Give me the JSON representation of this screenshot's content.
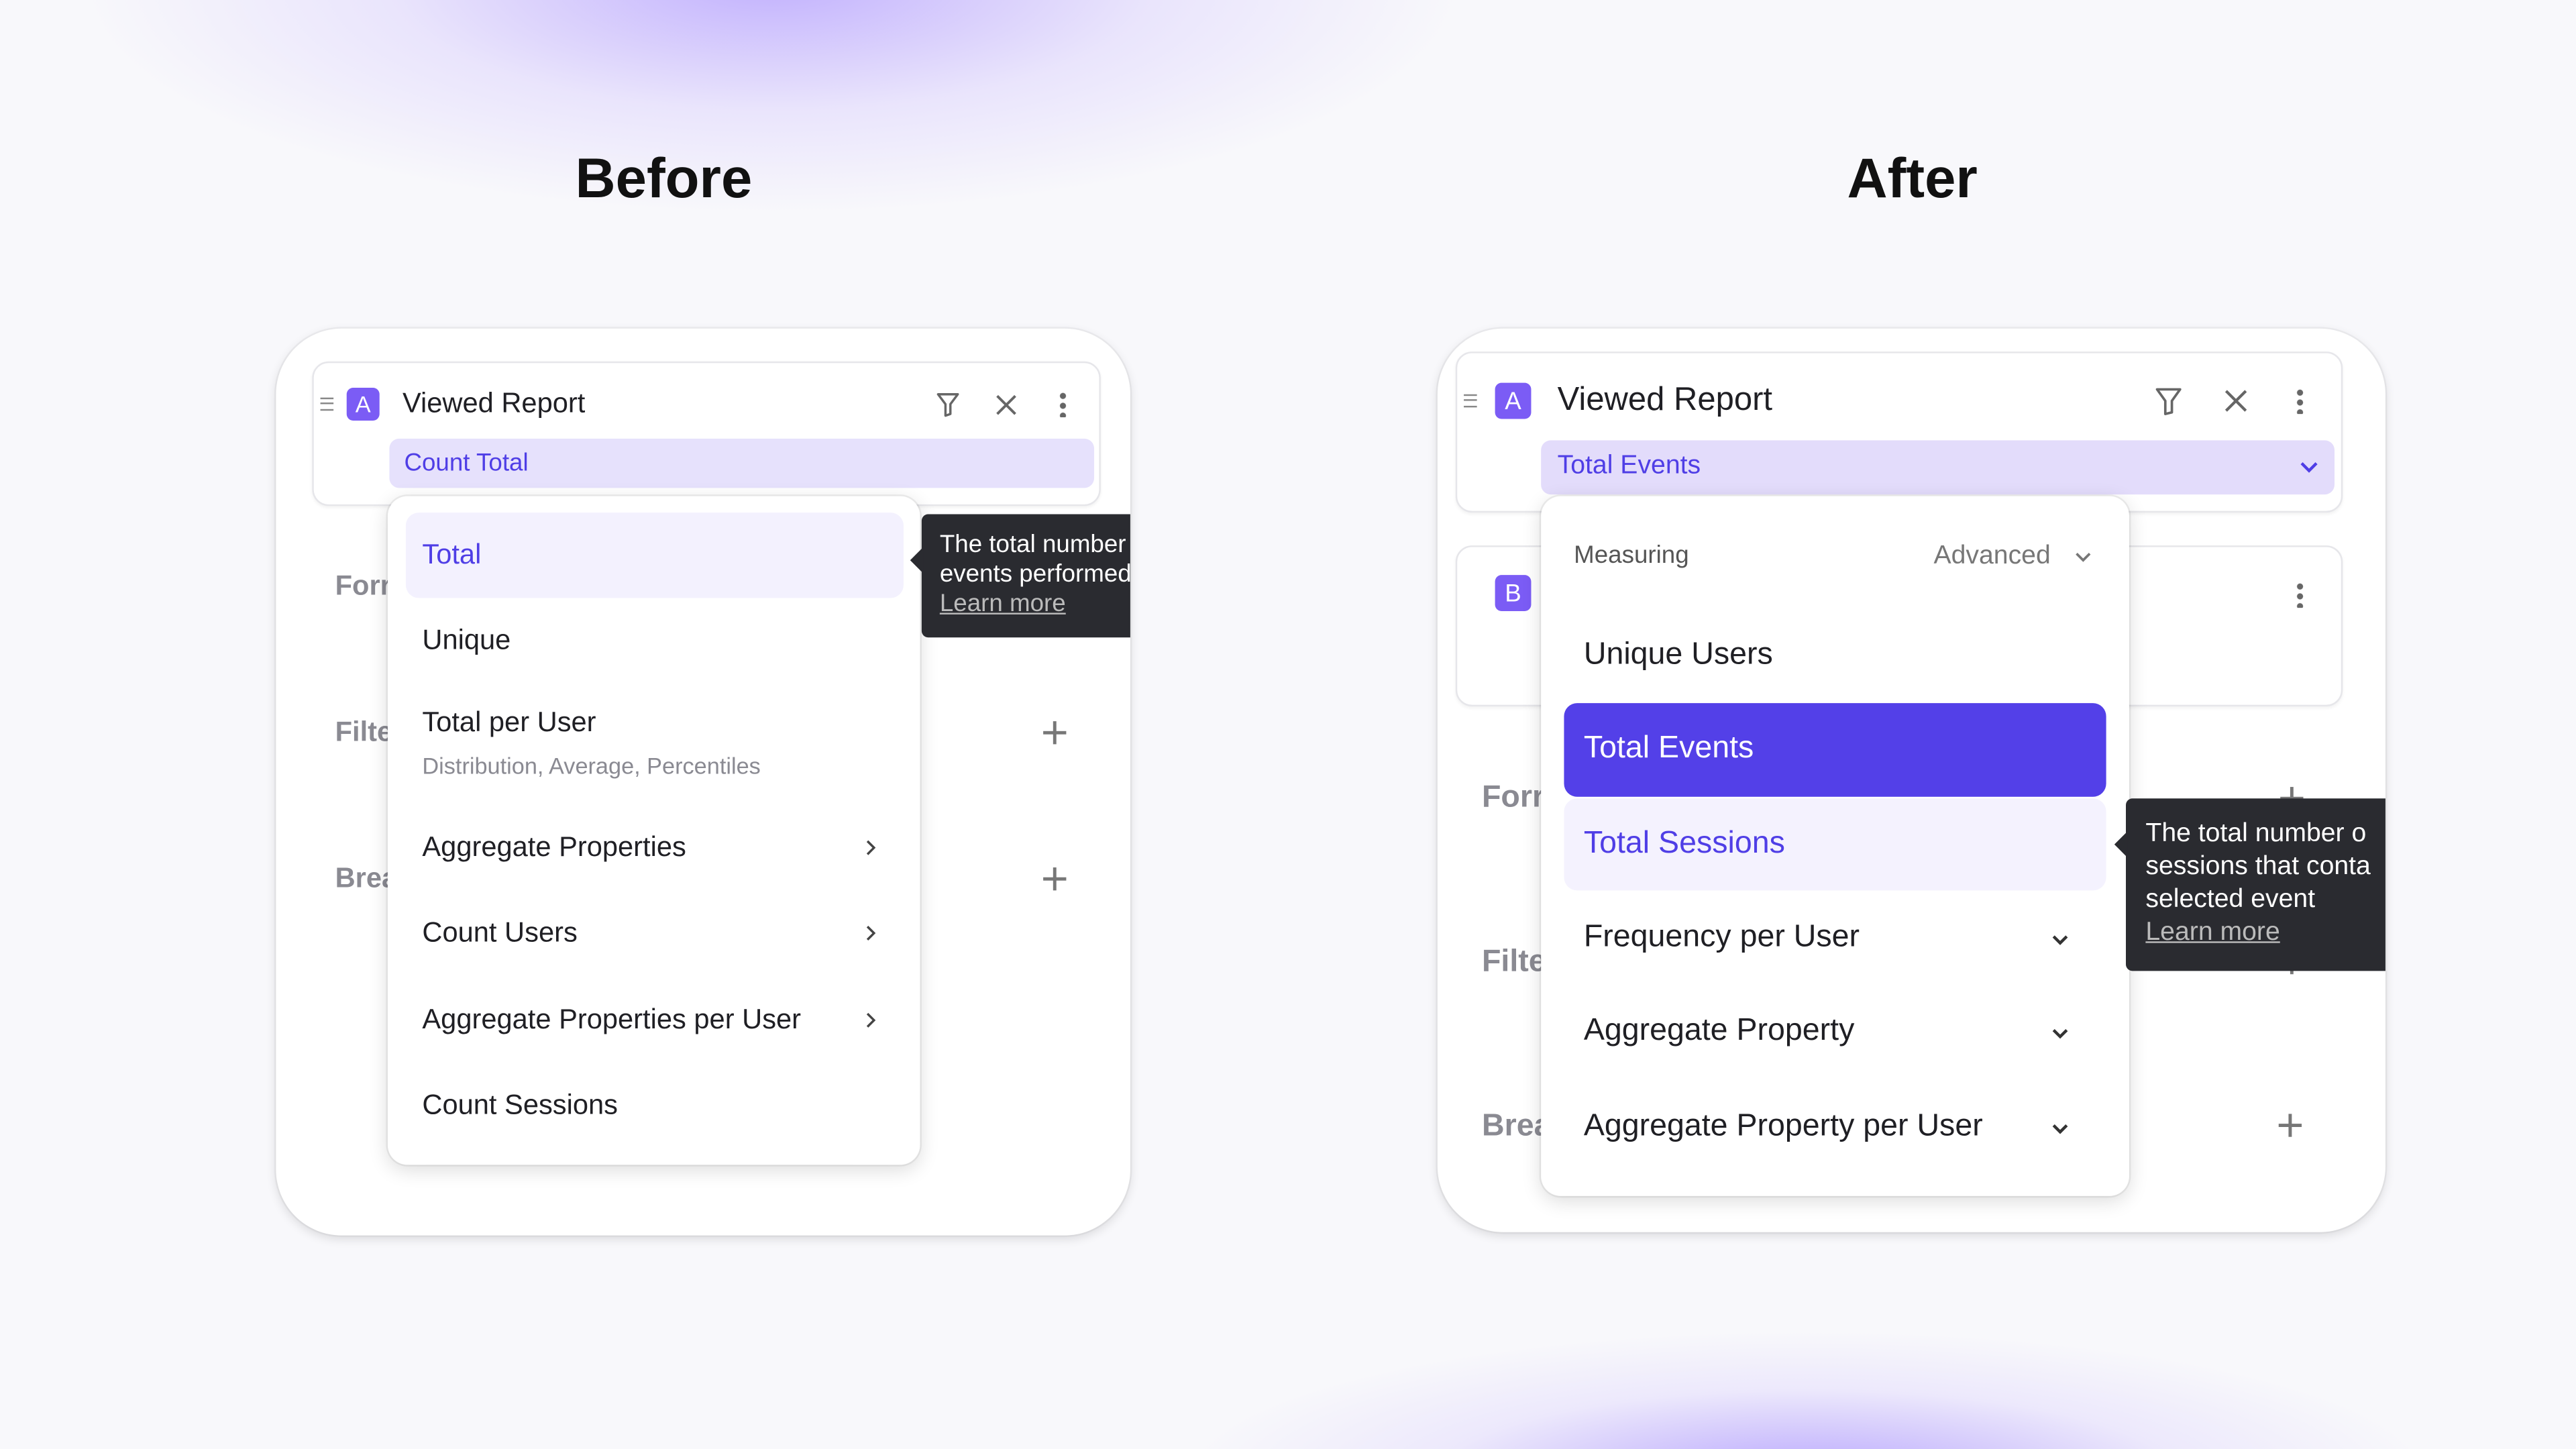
{
  "before": {
    "heading": "Before",
    "event_card": {
      "badge": "A",
      "event_name": "Viewed Report",
      "measure": "Count Total"
    },
    "side_labels": [
      "Forr",
      "Filte",
      "Brea"
    ],
    "menu": {
      "items": [
        {
          "label": "Total",
          "state": "hovered"
        },
        {
          "label": "Unique"
        },
        {
          "label": "Total per User",
          "sublabel": "Distribution, Average, Percentiles"
        },
        {
          "label": "Aggregate Properties",
          "has_submenu": true
        },
        {
          "label": "Count Users",
          "has_submenu": true
        },
        {
          "label": "Aggregate Properties per User",
          "has_submenu": true
        },
        {
          "label": "Count Sessions"
        }
      ]
    },
    "tooltip": {
      "lines": [
        "The total number",
        "events performed"
      ],
      "link": "Learn more"
    }
  },
  "after": {
    "heading": "After",
    "event_card": {
      "badge": "A",
      "event_name": "Viewed Report",
      "measure": "Total Events"
    },
    "second_card": {
      "badge": "B"
    },
    "side_labels": [
      "Forr",
      "Filte",
      "Brea"
    ],
    "menu": {
      "header": "Measuring",
      "advanced": "Advanced",
      "items": [
        {
          "label": "Unique Users"
        },
        {
          "label": "Total Events",
          "state": "selected"
        },
        {
          "label": "Total Sessions",
          "state": "hovered"
        },
        {
          "label": "Frequency per User",
          "expandable": true
        },
        {
          "label": "Aggregate Property",
          "expandable": true
        },
        {
          "label": "Aggregate Property per User",
          "expandable": true
        }
      ]
    },
    "tooltip": {
      "lines": [
        "The total number o",
        "sessions that conta",
        "selected event"
      ],
      "link": "Learn more"
    }
  },
  "colors": {
    "accent": "#5340e8",
    "badge": "#7b5cf5",
    "measure_bg": "#e6e1fc",
    "hover_bg": "#f3f1fe",
    "tooltip_bg": "#2a2b30"
  }
}
